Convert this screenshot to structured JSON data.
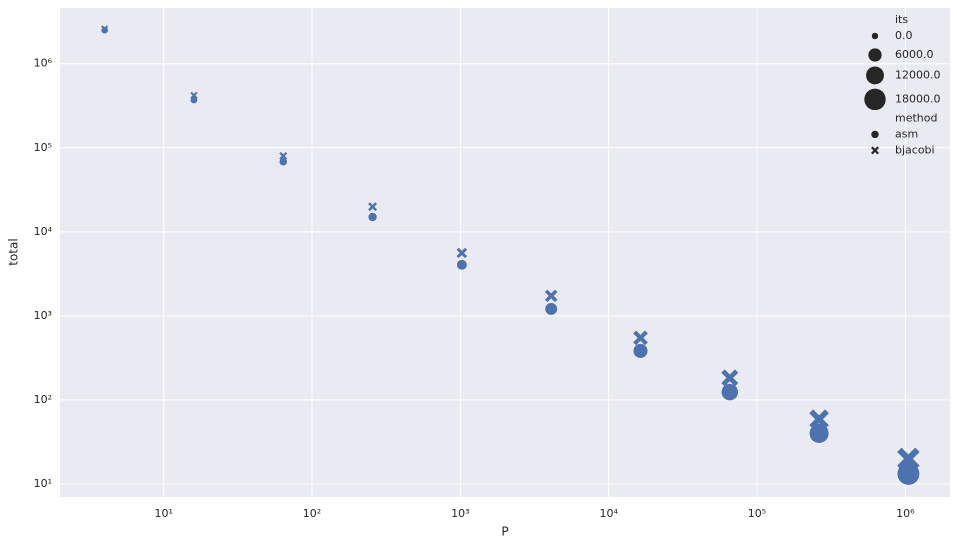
{
  "chart_data": {
    "type": "scatter",
    "x_label": "P",
    "y_label": "total",
    "log_x": true,
    "log_y": true,
    "grid": true,
    "legend_position": "upper right",
    "xlim": [
      2,
      2000000
    ],
    "ylim": [
      7,
      4600000
    ],
    "xticks": [
      {
        "value": 10,
        "label": "10¹"
      },
      {
        "value": 100,
        "label": "10²"
      },
      {
        "value": 1000,
        "label": "10³"
      },
      {
        "value": 10000,
        "label": "10⁴"
      },
      {
        "value": 100000,
        "label": "10⁵"
      },
      {
        "value": 1000000,
        "label": "10⁶"
      }
    ],
    "yticks": [
      {
        "value": 10,
        "label": "10¹"
      },
      {
        "value": 100,
        "label": "10²"
      },
      {
        "value": 1000,
        "label": "10³"
      },
      {
        "value": 10000,
        "label": "10⁴"
      },
      {
        "value": 100000,
        "label": "10⁵"
      },
      {
        "value": 1000000,
        "label": "10⁶"
      }
    ],
    "size_legend_title": "its",
    "size_legend": [
      {
        "value": 0,
        "label": "0.0"
      },
      {
        "value": 6000,
        "label": "6000.0"
      },
      {
        "value": 12000,
        "label": "12000.0"
      },
      {
        "value": 18000,
        "label": "18000.0"
      }
    ],
    "style_legend_title": "method",
    "series": [
      {
        "name": "asm",
        "marker": "circle",
        "color": "#4c72b0",
        "x": [
          4,
          16,
          64,
          256,
          1024,
          4096,
          16384,
          65536,
          262144,
          1048576
        ],
        "values": [
          2500000,
          370000,
          68000,
          15000,
          4050,
          1210,
          383,
          124,
          40,
          13.2
        ],
        "its": [
          50,
          200,
          600,
          1300,
          2500,
          4500,
          7000,
          10000,
          14000,
          19000
        ]
      },
      {
        "name": "bjacobi",
        "marker": "x",
        "color": "#4c72b0",
        "x": [
          4,
          16,
          64,
          256,
          1024,
          4096,
          16384,
          65536,
          262144,
          1048576
        ],
        "values": [
          2600000,
          420000,
          80000,
          19900,
          5600,
          1730,
          547,
          183,
          59,
          19.9
        ],
        "its": [
          50,
          200,
          600,
          1300,
          2500,
          4500,
          7000,
          10000,
          14000,
          19000
        ]
      }
    ]
  }
}
